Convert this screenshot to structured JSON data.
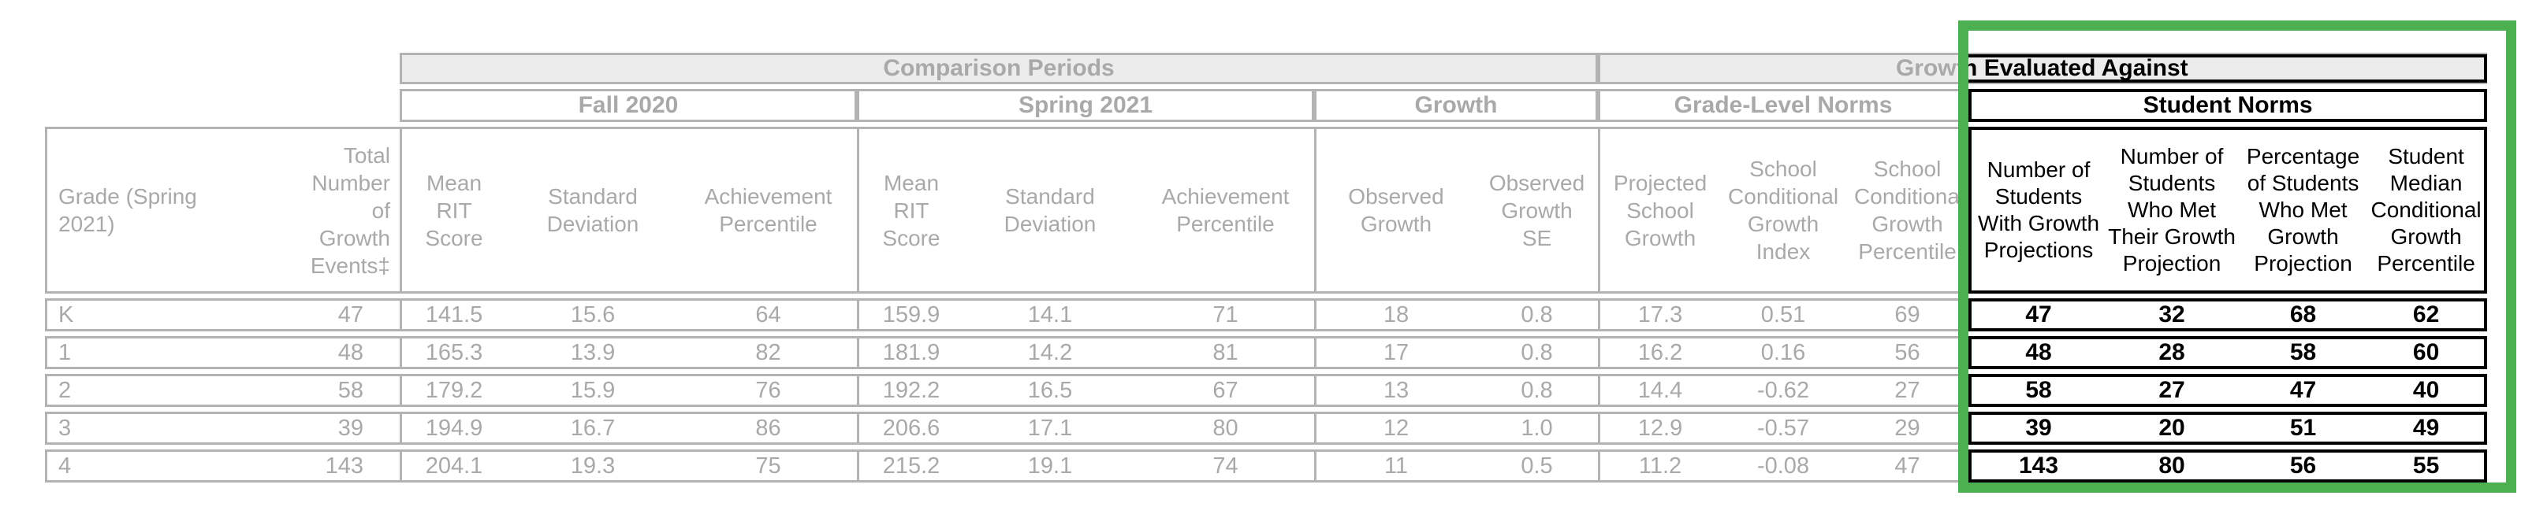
{
  "highlight": {
    "border_color": "#4caf50"
  },
  "table": {
    "group_headers": {
      "comparison_periods": "Comparison Periods",
      "growth_evaluated_against": "Growth Evaluated Against"
    },
    "section_headers": {
      "fall_2020": "Fall 2020",
      "spring_2021": "Spring 2021",
      "growth": "Growth",
      "grade_level_norms": "Grade-Level Norms",
      "student_norms": "Student Norms"
    },
    "columns": [
      "Grade (Spring 2021)",
      "Total Number of Growth Events‡",
      "Mean RIT Score",
      "Standard Deviation",
      "Achievement Percentile",
      "Mean RIT Score",
      "Standard Deviation",
      "Achievement Percentile",
      "Observed Growth",
      "Observed Growth SE",
      "Projected School Growth",
      "School Conditional Growth Index",
      "School Conditional Growth Percentile",
      "Number of Students With Growth Projections",
      "Number of Students Who Met Their Growth Projection",
      "Percentage of Students Who Met Growth Projection",
      "Student Median Conditional Growth Percentile"
    ],
    "rows": [
      [
        "K",
        "47",
        "141.5",
        "15.6",
        "64",
        "159.9",
        "14.1",
        "71",
        "18",
        "0.8",
        "17.3",
        "0.51",
        "69",
        "47",
        "32",
        "68",
        "62"
      ],
      [
        "1",
        "48",
        "165.3",
        "13.9",
        "82",
        "181.9",
        "14.2",
        "81",
        "17",
        "0.8",
        "16.2",
        "0.16",
        "56",
        "48",
        "28",
        "58",
        "60"
      ],
      [
        "2",
        "58",
        "179.2",
        "15.9",
        "76",
        "192.2",
        "16.5",
        "67",
        "13",
        "0.8",
        "14.4",
        "-0.62",
        "27",
        "58",
        "27",
        "47",
        "40"
      ],
      [
        "3",
        "39",
        "194.9",
        "16.7",
        "86",
        "206.6",
        "17.1",
        "80",
        "12",
        "1.0",
        "12.9",
        "-0.57",
        "29",
        "39",
        "20",
        "51",
        "49"
      ],
      [
        "4",
        "143",
        "204.1",
        "19.3",
        "75",
        "215.2",
        "19.1",
        "74",
        "11",
        "0.5",
        "11.2",
        "-0.08",
        "47",
        "143",
        "80",
        "56",
        "55"
      ]
    ]
  }
}
